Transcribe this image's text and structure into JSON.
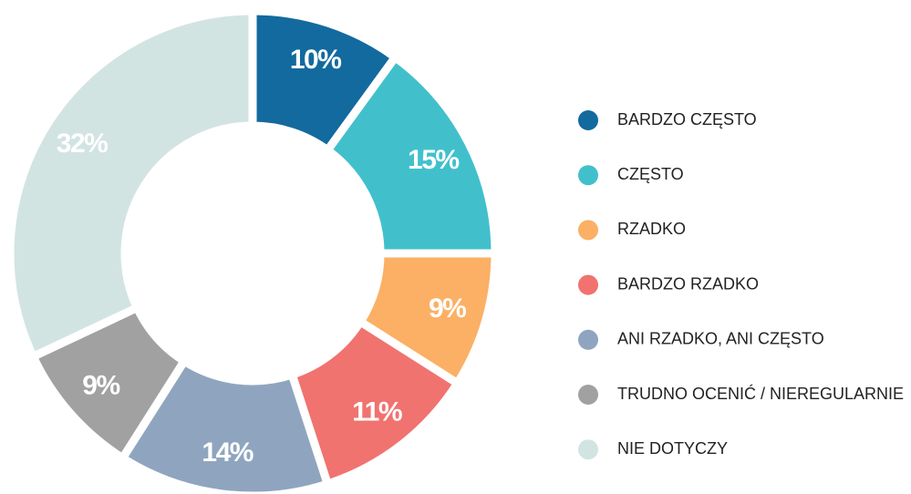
{
  "chart_data": {
    "type": "pie",
    "categories": [
      "BARDZO CZĘSTO",
      "CZĘSTO",
      "RZADKO",
      "BARDZO RZADKO",
      "ANI RZADKO, ANI CZĘSTO",
      "TRUDNO OCENIĆ / NIEREGULARNIE",
      "NIE DOTYCZY"
    ],
    "values": [
      10,
      15,
      9,
      11,
      14,
      9,
      32
    ],
    "value_labels": [
      "10%",
      "15%",
      "9%",
      "11%",
      "14%",
      "9%",
      "32%"
    ],
    "colors": [
      "#136a9e",
      "#41c0cc",
      "#fbb065",
      "#f07370",
      "#8fa5bf",
      "#a1a1a1",
      "#d2e4e2"
    ],
    "legend": "right"
  }
}
